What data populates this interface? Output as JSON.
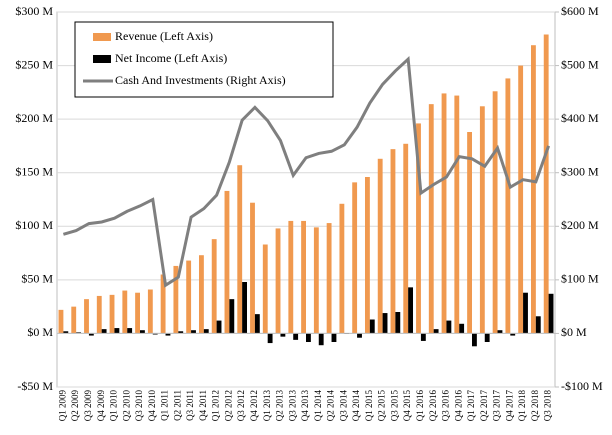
{
  "chart_data": {
    "type": "bar",
    "categories": [
      "Q1 2009",
      "Q2 2009",
      "Q3 2009",
      "Q4 2009",
      "Q1 2010",
      "Q2 2010",
      "Q3 2010",
      "Q4 2010",
      "Q1 2011",
      "Q2 2011",
      "Q3 2011",
      "Q4 2011",
      "Q1 2012",
      "Q2 2012",
      "Q3 2012",
      "Q4 2012",
      "Q1 2013",
      "Q2 2013",
      "Q3 2013",
      "Q4 2013",
      "Q1 2014",
      "Q2 2014",
      "Q3 2014",
      "Q4 2014",
      "Q1 2015",
      "Q2 2015",
      "Q3 2015",
      "Q4 2015",
      "Q1 2016",
      "Q2 2016",
      "Q3 2016",
      "Q4 2016",
      "Q1 2017",
      "Q2 2017",
      "Q3 2017",
      "Q4 2017",
      "Q1 2018",
      "Q2 2018",
      "Q3 2018"
    ],
    "series": [
      {
        "name": "Revenue (Left Axis)",
        "type": "bar",
        "color": "#f0994f",
        "values": [
          22,
          25,
          32,
          35,
          36,
          40,
          38,
          41,
          55,
          63,
          68,
          73,
          88,
          133,
          157,
          122,
          83,
          98,
          105,
          105,
          99,
          103,
          121,
          141,
          146,
          163,
          172,
          177,
          196,
          214,
          224,
          222,
          188,
          212,
          226,
          238,
          250,
          269,
          279
        ]
      },
      {
        "name": "Net Income (Left Axis)",
        "type": "bar",
        "color": "#000000",
        "values": [
          2,
          1,
          -2,
          4,
          5,
          5,
          3,
          -1,
          -2,
          2,
          3,
          4,
          12,
          32,
          48,
          18,
          -9,
          -3,
          -6,
          -8,
          -11,
          -8,
          0,
          -4,
          13,
          19,
          20,
          43,
          -7,
          4,
          12,
          9,
          -12,
          -8,
          3,
          -2,
          38,
          16,
          37
        ]
      },
      {
        "name": "Cash And Investments (Right Axis)",
        "type": "line",
        "axis": "y2",
        "color": "#7f7f7f",
        "values": [
          185,
          192,
          205,
          208,
          215,
          228,
          238,
          250,
          90,
          105,
          217,
          233,
          258,
          320,
          398,
          422,
          397,
          360,
          295,
          328,
          336,
          340,
          352,
          385,
          430,
          465,
          490,
          512,
          262,
          278,
          292,
          330,
          326,
          312,
          346,
          273,
          287,
          283,
          350
        ]
      }
    ],
    "ylim": [
      -50,
      300
    ],
    "yticks": [
      {
        "value": -50,
        "label": "-$50 M"
      },
      {
        "value": 0,
        "label": "$0 M"
      },
      {
        "value": 50,
        "label": "$50 M"
      },
      {
        "value": 100,
        "label": "$100 M"
      },
      {
        "value": 150,
        "label": "$150 M"
      },
      {
        "value": 200,
        "label": "$200 M"
      },
      {
        "value": 250,
        "label": "$250 M"
      },
      {
        "value": 300,
        "label": "$300 M"
      }
    ],
    "y2lim": [
      -100,
      600
    ],
    "y2ticks": [
      {
        "value": -100,
        "label": "-$100 M"
      },
      {
        "value": 0,
        "label": "$0 M"
      },
      {
        "value": 100,
        "label": "$100 M"
      },
      {
        "value": 200,
        "label": "$200 M"
      },
      {
        "value": 300,
        "label": "$300 M"
      },
      {
        "value": 400,
        "label": "$400 M"
      },
      {
        "value": 500,
        "label": "$500 M"
      },
      {
        "value": 600,
        "label": "$600 M"
      }
    ],
    "grid": true,
    "legend": "upper left"
  }
}
